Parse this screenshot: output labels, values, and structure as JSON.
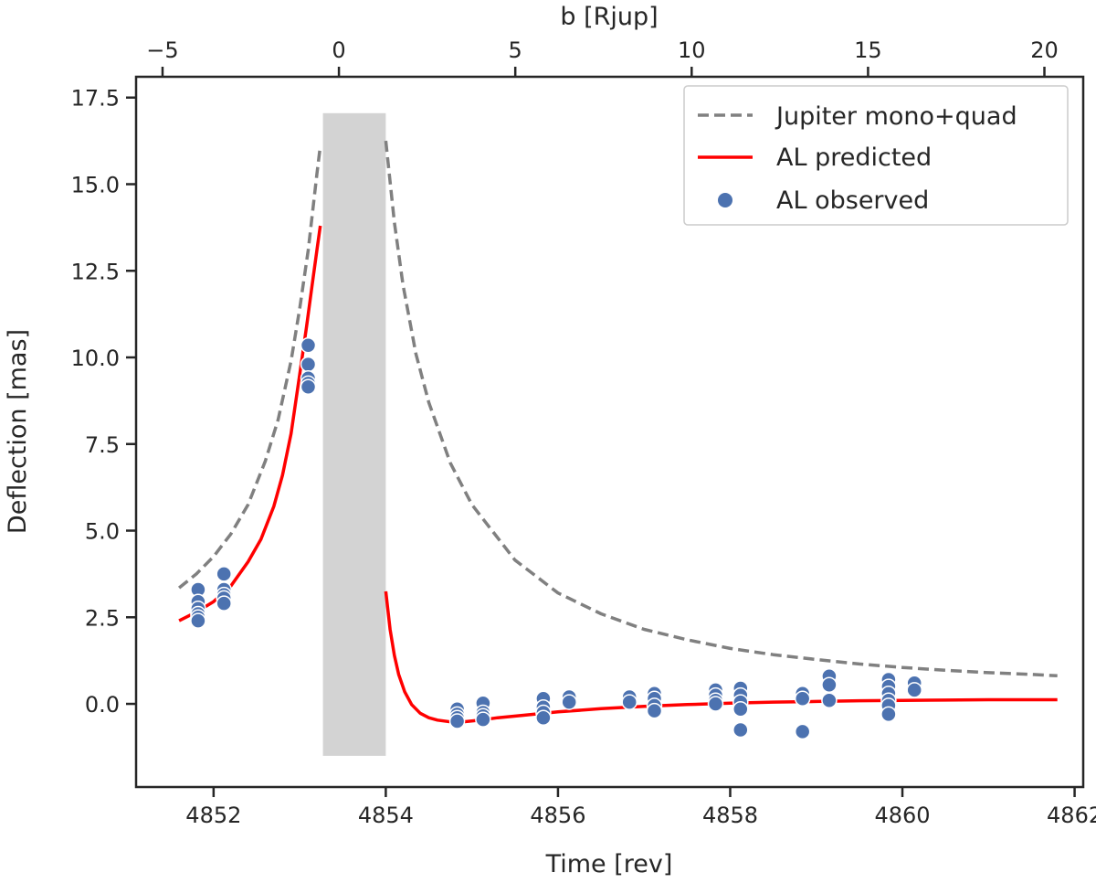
{
  "chart_data": {
    "type": "line",
    "xlabel": "Time [rev]",
    "ylabel": "Deflection [mas]",
    "top_xlabel": "b [Rjup]",
    "xlim": [
      4851.1,
      4862.1
    ],
    "ylim": [
      -2.4,
      18.1
    ],
    "top_xlim": [
      -5.75,
      21.1
    ],
    "xticks": [
      4852,
      4854,
      4856,
      4858,
      4860,
      4862
    ],
    "yticks": [
      0.0,
      2.5,
      5.0,
      7.5,
      10.0,
      12.5,
      15.0,
      17.5
    ],
    "top_xticks": [
      -5,
      0,
      5,
      10,
      15,
      20
    ],
    "xtick_labels": [
      "4852",
      "4854",
      "4856",
      "4858",
      "4860",
      "4862"
    ],
    "ytick_labels": [
      "0.0",
      "2.5",
      "5.0",
      "7.5",
      "10.0",
      "12.5",
      "15.0",
      "17.5"
    ],
    "top_xtick_labels": [
      "−5",
      "0",
      "5",
      "10",
      "15",
      "20"
    ],
    "shaded_region": {
      "x": [
        4853.27,
        4854.0
      ],
      "y": [
        -1.5,
        17.05
      ],
      "color": "#d3d3d3"
    },
    "legend": {
      "position": "top-right",
      "entries": [
        "Jupiter mono+quad",
        "AL predicted",
        "AL observed"
      ]
    },
    "series": [
      {
        "name": "Jupiter mono+quad",
        "style": "dashed",
        "color": "#808080",
        "x": [
          4851.6,
          4851.8,
          4852.0,
          4852.2,
          4852.4,
          4852.6,
          4852.75,
          4852.9,
          4853.0,
          4853.1,
          4853.2,
          4853.24
        ],
        "y": [
          3.35,
          3.75,
          4.25,
          4.9,
          5.75,
          7.0,
          8.2,
          9.9,
          11.4,
          13.1,
          15.3,
          16.1
        ]
      },
      {
        "name": "Jupiter mono+quad",
        "style": "dashed",
        "color": "#808080",
        "x": [
          4854.0,
          4854.1,
          4854.2,
          4854.35,
          4854.5,
          4854.75,
          4855.0,
          4855.5,
          4856.0,
          4856.5,
          4857.0,
          4857.5,
          4858.0,
          4858.5,
          4859.0,
          4859.5,
          4860.0,
          4860.5,
          4861.0,
          4861.5,
          4861.8
        ],
        "y": [
          16.25,
          13.9,
          12.1,
          10.1,
          8.7,
          6.95,
          5.75,
          4.15,
          3.2,
          2.6,
          2.15,
          1.85,
          1.6,
          1.42,
          1.28,
          1.15,
          1.05,
          0.97,
          0.9,
          0.85,
          0.81
        ]
      },
      {
        "name": "AL predicted",
        "style": "solid",
        "color": "#ff0000",
        "x": [
          4851.6,
          4851.8,
          4852.0,
          4852.2,
          4852.4,
          4852.55,
          4852.7,
          4852.8,
          4852.9,
          4853.0,
          4853.08,
          4853.14,
          4853.2,
          4853.24
        ],
        "y": [
          2.4,
          2.65,
          2.95,
          3.4,
          4.1,
          4.75,
          5.7,
          6.6,
          7.8,
          9.5,
          10.9,
          12.0,
          13.1,
          13.8
        ]
      },
      {
        "name": "AL predicted",
        "style": "solid",
        "color": "#ff0000",
        "x": [
          4854.0,
          4854.05,
          4854.1,
          4854.15,
          4854.22,
          4854.3,
          4854.4,
          4854.5,
          4854.6,
          4854.75,
          4854.9,
          4855.1,
          4855.3,
          4855.6,
          4856.0,
          4856.5,
          4857.0,
          4857.5,
          4858.0,
          4858.5,
          4859.0,
          4859.5,
          4860.0,
          4860.5,
          4861.0,
          4861.5,
          4861.8
        ],
        "y": [
          3.25,
          2.15,
          1.4,
          0.85,
          0.35,
          -0.02,
          -0.27,
          -0.4,
          -0.47,
          -0.52,
          -0.52,
          -0.47,
          -0.4,
          -0.33,
          -0.23,
          -0.14,
          -0.07,
          -0.02,
          0.02,
          0.05,
          0.07,
          0.09,
          0.1,
          0.11,
          0.12,
          0.12,
          0.12
        ]
      }
    ],
    "scatter": {
      "name": "AL observed",
      "color": "#4c72b0",
      "points": [
        [
          4851.82,
          3.3
        ],
        [
          4851.82,
          2.95
        ],
        [
          4851.82,
          2.75
        ],
        [
          4851.82,
          2.6
        ],
        [
          4851.82,
          2.5
        ],
        [
          4851.82,
          2.4
        ],
        [
          4852.12,
          3.75
        ],
        [
          4852.12,
          3.3
        ],
        [
          4852.12,
          3.15
        ],
        [
          4852.12,
          3.05
        ],
        [
          4852.12,
          2.9
        ],
        [
          4853.1,
          10.35
        ],
        [
          4853.1,
          9.8
        ],
        [
          4853.1,
          9.4
        ],
        [
          4853.1,
          9.25
        ],
        [
          4853.1,
          9.15
        ],
        [
          4854.83,
          -0.15
        ],
        [
          4854.83,
          -0.3
        ],
        [
          4854.83,
          -0.4
        ],
        [
          4854.83,
          -0.5
        ],
        [
          4855.13,
          0.02
        ],
        [
          4855.13,
          -0.25
        ],
        [
          4855.13,
          -0.35
        ],
        [
          4855.13,
          -0.45
        ],
        [
          4855.83,
          0.15
        ],
        [
          4855.83,
          -0.1
        ],
        [
          4855.83,
          -0.25
        ],
        [
          4855.83,
          -0.4
        ],
        [
          4856.13,
          0.2
        ],
        [
          4856.13,
          0.05
        ],
        [
          4856.83,
          0.2
        ],
        [
          4856.83,
          0.05
        ],
        [
          4857.12,
          0.3
        ],
        [
          4857.12,
          0.15
        ],
        [
          4857.12,
          -0.05
        ],
        [
          4857.12,
          -0.2
        ],
        [
          4857.83,
          0.4
        ],
        [
          4857.83,
          0.25
        ],
        [
          4857.83,
          0.1
        ],
        [
          4857.83,
          0.0
        ],
        [
          4858.12,
          0.45
        ],
        [
          4858.12,
          0.25
        ],
        [
          4858.12,
          0.05
        ],
        [
          4858.12,
          -0.15
        ],
        [
          4858.12,
          -0.75
        ],
        [
          4858.84,
          0.3
        ],
        [
          4858.84,
          0.15
        ],
        [
          4858.84,
          -0.8
        ],
        [
          4859.15,
          0.8
        ],
        [
          4859.15,
          0.55
        ],
        [
          4859.15,
          0.1
        ],
        [
          4859.84,
          0.7
        ],
        [
          4859.84,
          0.5
        ],
        [
          4859.84,
          0.3
        ],
        [
          4859.84,
          0.1
        ],
        [
          4859.84,
          -0.05
        ],
        [
          4859.84,
          -0.3
        ],
        [
          4860.14,
          0.6
        ],
        [
          4860.14,
          0.4
        ]
      ]
    }
  }
}
